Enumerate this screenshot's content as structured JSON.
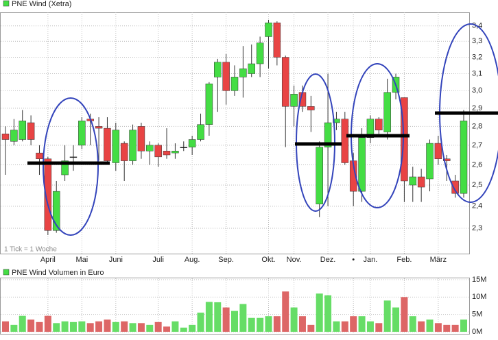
{
  "chart_data": {
    "type": "candlestick",
    "title": "PNE Wind (Xetra)",
    "note": "1 Tick = 1 Woche",
    "categories": [
      null,
      null,
      null,
      null,
      null,
      "April",
      null,
      null,
      null,
      "Mai",
      null,
      null,
      null,
      "Juni",
      null,
      null,
      null,
      null,
      "Juli",
      null,
      null,
      null,
      "Aug.",
      null,
      null,
      null,
      "Sep.",
      null,
      null,
      null,
      null,
      "Okt.",
      null,
      null,
      "Nov.",
      null,
      null,
      null,
      "Dez.",
      null,
      null,
      "•",
      null,
      "Jan.",
      null,
      null,
      null,
      "Feb.",
      null,
      null,
      null,
      "März",
      null,
      null,
      null
    ],
    "open": [
      2.76,
      2.72,
      2.73,
      2.82,
      2.66,
      2.63,
      2.29,
      2.55,
      2.64,
      2.7,
      2.84,
      2.8,
      2.79,
      2.61,
      2.71,
      2.62,
      2.8,
      2.67,
      2.7,
      2.67,
      2.66,
      2.69,
      2.69,
      2.73,
      2.81,
      3.08,
      3.17,
      3.0,
      3.08,
      3.1,
      3.16,
      3.33,
      3.42,
      3.2,
      2.91,
      2.99,
      2.91,
      2.41,
      2.69,
      2.82,
      2.84,
      2.62,
      2.47,
      2.74,
      2.84,
      2.77,
      2.99,
      2.96,
      2.5,
      2.54,
      2.53,
      2.71,
      2.63,
      2.52,
      2.46
    ],
    "high": [
      2.8,
      2.84,
      2.89,
      2.86,
      2.7,
      2.64,
      2.52,
      2.7,
      2.7,
      2.85,
      2.87,
      2.85,
      2.85,
      2.82,
      2.72,
      2.81,
      2.82,
      2.72,
      2.71,
      2.79,
      2.71,
      2.72,
      2.75,
      2.87,
      3.05,
      3.19,
      3.22,
      3.15,
      3.27,
      3.28,
      3.33,
      3.44,
      3.43,
      3.21,
      3.03,
      3.03,
      2.97,
      2.72,
      3.1,
      2.88,
      2.88,
      2.66,
      2.79,
      2.86,
      2.85,
      3.07,
      3.1,
      2.96,
      2.59,
      2.58,
      2.73,
      2.75,
      2.65,
      2.55,
      2.89
    ],
    "low": [
      2.55,
      2.7,
      2.72,
      2.7,
      2.55,
      2.27,
      2.28,
      2.52,
      2.57,
      2.68,
      2.7,
      2.62,
      2.6,
      2.57,
      2.52,
      2.6,
      2.63,
      2.6,
      2.59,
      2.63,
      2.63,
      2.67,
      2.65,
      2.72,
      2.75,
      2.88,
      2.92,
      2.97,
      2.96,
      3.08,
      3.08,
      3.13,
      3.15,
      2.69,
      2.8,
      2.88,
      2.77,
      2.35,
      2.4,
      2.78,
      2.6,
      2.4,
      2.42,
      2.71,
      2.76,
      2.73,
      2.95,
      2.42,
      2.42,
      2.42,
      2.47,
      2.6,
      2.52,
      2.44,
      2.44
    ],
    "close": [
      2.73,
      2.78,
      2.83,
      2.73,
      2.63,
      2.29,
      2.47,
      2.62,
      2.64,
      2.83,
      2.83,
      2.79,
      2.62,
      2.78,
      2.62,
      2.78,
      2.67,
      2.7,
      2.64,
      2.65,
      2.67,
      2.69,
      2.73,
      2.81,
      3.04,
      3.17,
      3.0,
      3.08,
      3.13,
      3.16,
      3.29,
      3.42,
      3.2,
      2.91,
      2.98,
      2.91,
      2.89,
      2.69,
      2.82,
      2.84,
      2.61,
      2.47,
      2.74,
      2.84,
      2.78,
      2.99,
      3.08,
      2.52,
      2.54,
      2.49,
      2.71,
      2.63,
      2.62,
      2.46,
      2.83
    ],
    "up_color": "#44dd44",
    "down_color": "#e84444",
    "log_scale": true,
    "grid": true,
    "ylim": [
      2.19,
      3.49
    ],
    "yticks": [
      {
        "value": 2.3,
        "label": "2,3"
      },
      {
        "value": 2.4,
        "label": "2,4"
      },
      {
        "value": 2.5,
        "label": "2,5"
      },
      {
        "value": 2.6,
        "label": "2,6"
      },
      {
        "value": 2.7,
        "label": "2,7"
      },
      {
        "value": 2.8,
        "label": "2,8"
      },
      {
        "value": 2.9,
        "label": "2,9"
      },
      {
        "value": 3.0,
        "label": "3,0"
      },
      {
        "value": 3.1,
        "label": "3,1"
      },
      {
        "value": 3.2,
        "label": "3,2"
      },
      {
        "value": 3.3,
        "label": "3,3"
      },
      {
        "value": 3.4,
        "label": "3,4"
      }
    ],
    "volume": {
      "title": "PNE Wind Volumen in Euro",
      "values": [
        3.0,
        2.0,
        4.6,
        3.5,
        2.8,
        4.6,
        2.5,
        3.0,
        2.8,
        3.0,
        2.5,
        3.0,
        3.5,
        2.8,
        3.0,
        2.5,
        2.5,
        2.0,
        2.8,
        1.5,
        3.0,
        1.2,
        2.0,
        5.5,
        8.6,
        8.5,
        7.0,
        6.0,
        8.0,
        4.0,
        4.0,
        4.5,
        4.5,
        11.6,
        7.0,
        4.5,
        2.0,
        11.0,
        10.5,
        3.0,
        3.0,
        4.5,
        4.5,
        3.0,
        2.5,
        9.0,
        7.0,
        10.0,
        4.5,
        3.0,
        3.5,
        2.5,
        2.0,
        2.0,
        3.5
      ],
      "up_color": "#66dd66",
      "down_color": "#dd6666",
      "ylim": [
        0,
        15
      ],
      "yticks": [
        {
          "value": 0,
          "label": "0M"
        },
        {
          "value": 5,
          "label": "5M"
        },
        {
          "value": 10,
          "label": "10M"
        },
        {
          "value": 15,
          "label": "15M"
        }
      ]
    }
  }
}
